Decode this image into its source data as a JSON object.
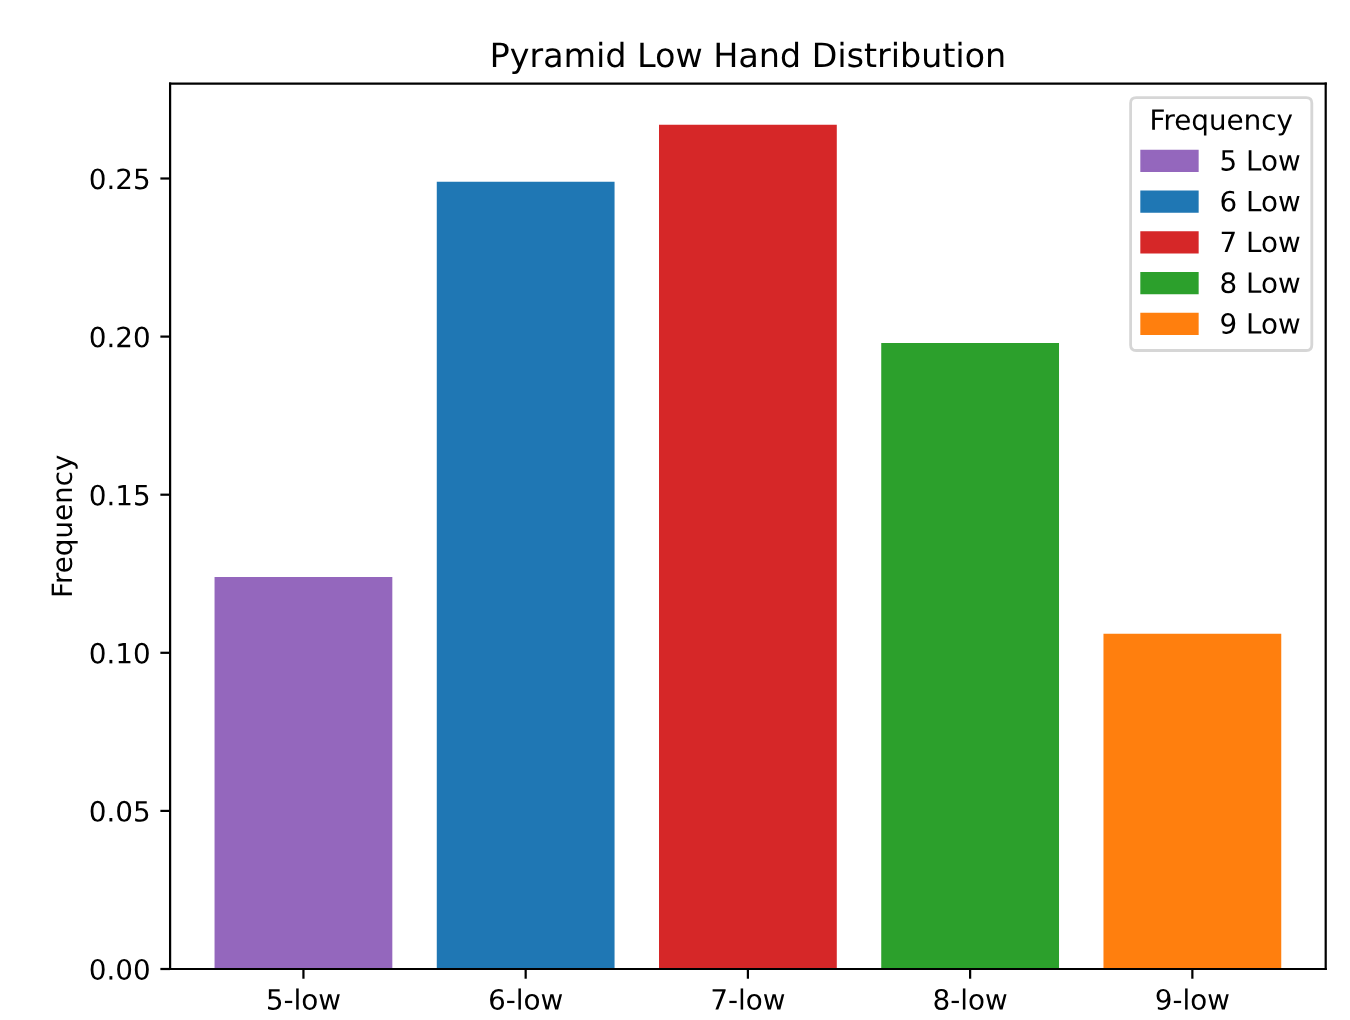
{
  "chart_data": {
    "type": "bar",
    "title": "Pyramid Low Hand Distribution",
    "ylabel": "Frequency",
    "legend_title": "Frequency",
    "categories": [
      "5-low",
      "6-low",
      "7-low",
      "8-low",
      "9-low"
    ],
    "series": [
      {
        "name": "5 Low",
        "color": "#9467bd",
        "values": [
          0.124,
          null,
          null,
          null,
          null
        ]
      },
      {
        "name": "6 Low",
        "color": "#1f77b4",
        "values": [
          null,
          0.249,
          null,
          null,
          null
        ]
      },
      {
        "name": "7 Low",
        "color": "#d62728",
        "values": [
          null,
          null,
          0.267,
          null,
          null
        ]
      },
      {
        "name": "8 Low",
        "color": "#2ca02c",
        "values": [
          null,
          null,
          null,
          0.198,
          null
        ]
      },
      {
        "name": "9 Low",
        "color": "#ff7f0e",
        "values": [
          null,
          null,
          null,
          null,
          0.106
        ]
      }
    ],
    "ylim": [
      0,
      0.28
    ],
    "yticks": [
      {
        "value": 0,
        "label": "0.00"
      },
      {
        "value": 0.05,
        "label": "0.05"
      },
      {
        "value": 0.1,
        "label": "0.10"
      },
      {
        "value": 0.15,
        "label": "0.15"
      },
      {
        "value": 0.2,
        "label": "0.20"
      },
      {
        "value": 0.25,
        "label": "0.25"
      }
    ],
    "legend": "top right",
    "grid": false
  }
}
